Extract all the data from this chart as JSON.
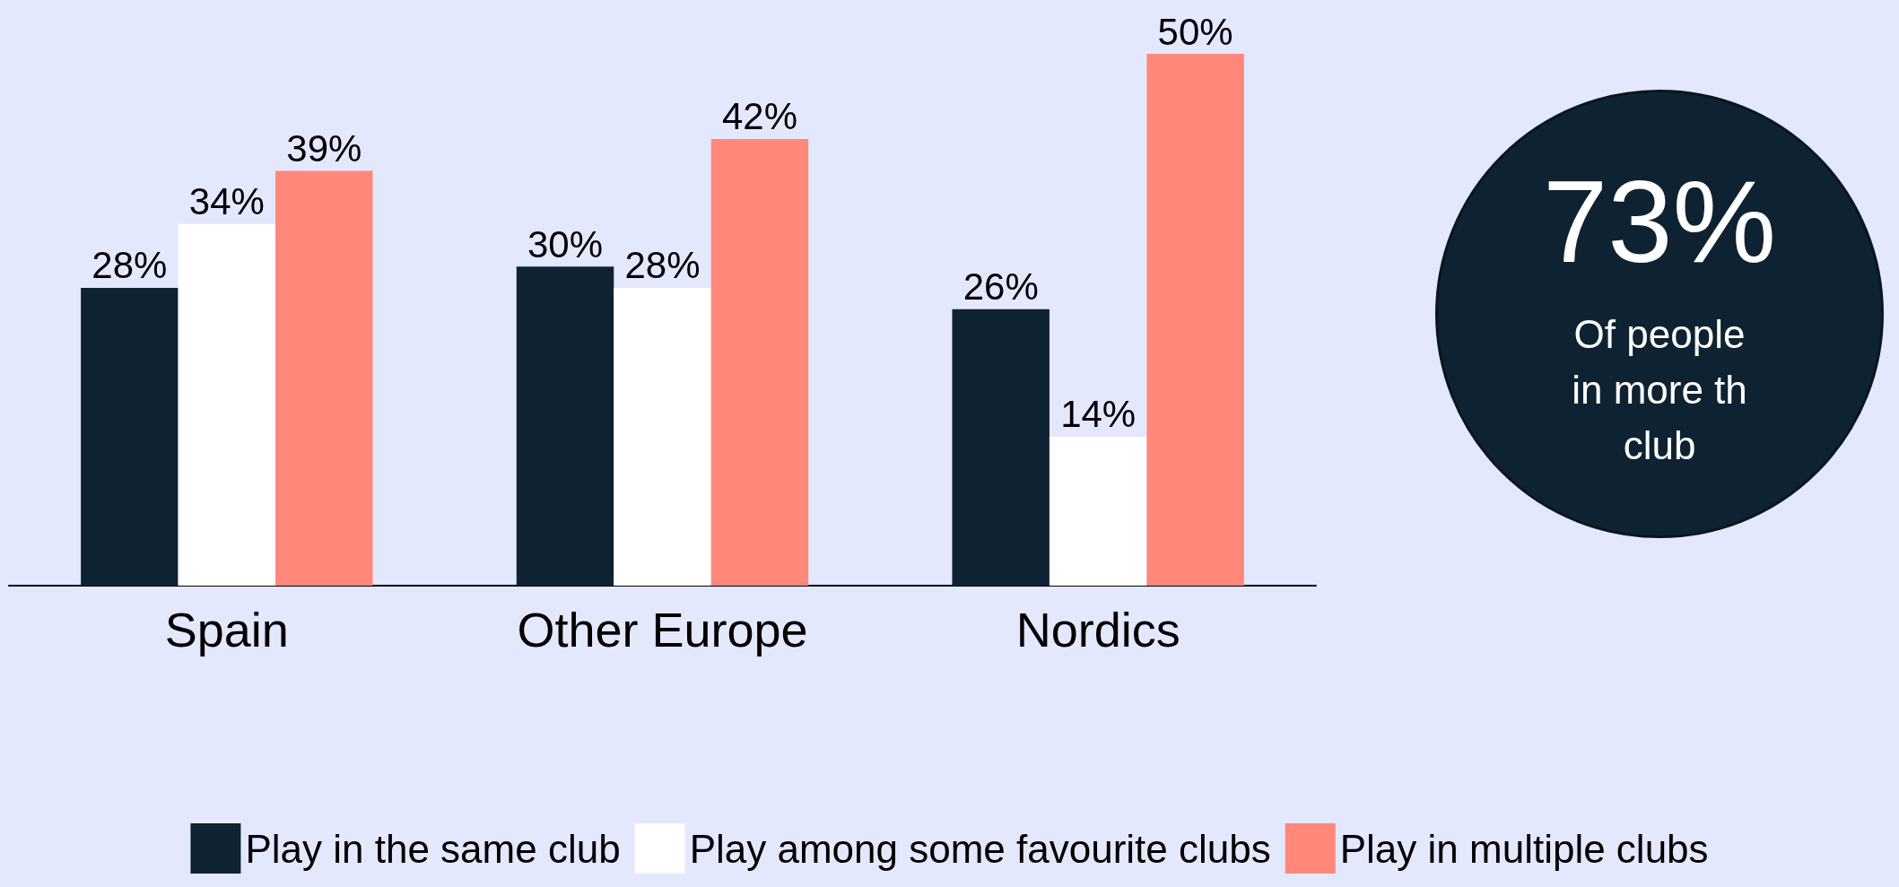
{
  "chart_data": {
    "type": "bar",
    "categories": [
      "Spain",
      "Other Europe",
      "Nordics"
    ],
    "series": [
      {
        "name": "Play in the same club",
        "color": "#0f2232",
        "values": [
          28,
          30,
          26
        ],
        "value_labels": [
          "28%",
          "30%",
          "26%"
        ]
      },
      {
        "name": "Play among some favourite clubs",
        "color": "#ffffff",
        "values": [
          34,
          28,
          14
        ],
        "value_labels": [
          "34%",
          "28%",
          "14%"
        ]
      },
      {
        "name": "Play in multiple clubs",
        "color": "#ff887a",
        "values": [
          39,
          42,
          50
        ],
        "value_labels": [
          "39%",
          "42%",
          "50%"
        ]
      }
    ],
    "legend": "bottom",
    "grid": false,
    "annotations": [
      "73%",
      "Of people",
      "in more th",
      "club"
    ]
  }
}
